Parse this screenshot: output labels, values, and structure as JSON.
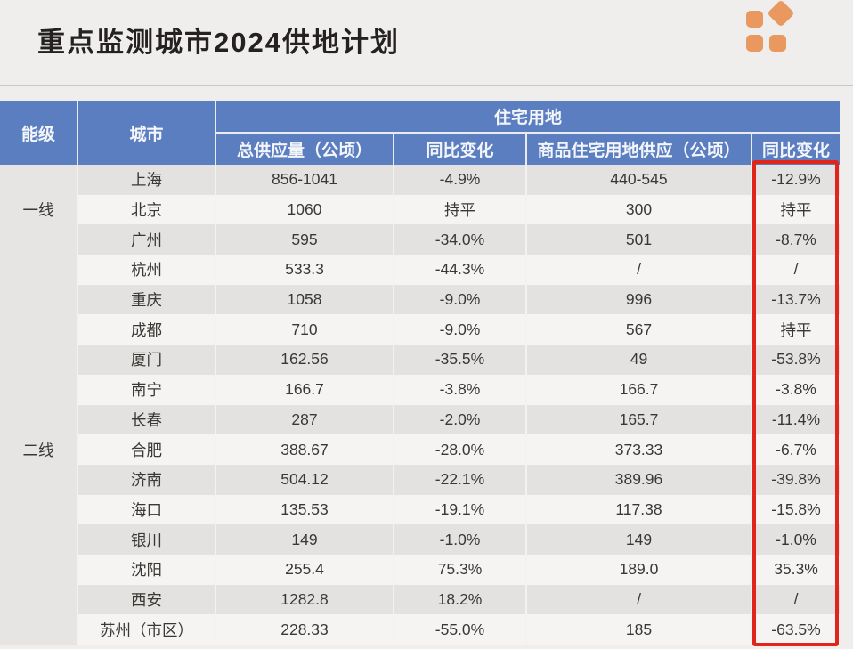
{
  "page": {
    "title": "重点监测城市2024供地计划"
  },
  "logo": {
    "color": "#e9995f"
  },
  "colors": {
    "page_bg": "#efeeec",
    "header_bg": "#5b7ec1",
    "stripe_gray": "#e3e2e0",
    "stripe_white": "#f5f4f2",
    "tier_col_bg": "#e6e5e3",
    "highlight_red": "#e0251c"
  },
  "table_header": {
    "tier": "能级",
    "city": "城市",
    "group": "住宅用地",
    "sub": [
      "总供应量（公顷）",
      "同比变化",
      "商品住宅用地供应（公顷）",
      "同比变化"
    ]
  },
  "chart_data": {
    "type": "table",
    "title": "重点监测城市2024供地计划",
    "columns": [
      "能级",
      "城市",
      "总供应量（公顷）",
      "同比变化",
      "商品住宅用地供应（公顷）",
      "同比变化"
    ],
    "rows": [
      [
        "一线",
        "上海",
        "856-1041",
        "-4.9%",
        "440-545",
        "-12.9%"
      ],
      [
        "一线",
        "北京",
        "1060",
        "持平",
        "300",
        "持平"
      ],
      [
        "一线",
        "广州",
        "595",
        "-34.0%",
        "501",
        "-8.7%"
      ],
      [
        "二线",
        "杭州",
        "533.3",
        "-44.3%",
        "/",
        "/"
      ],
      [
        "二线",
        "重庆",
        "1058",
        "-9.0%",
        "996",
        "-13.7%"
      ],
      [
        "二线",
        "成都",
        "710",
        "-9.0%",
        "567",
        "持平"
      ],
      [
        "二线",
        "厦门",
        "162.56",
        "-35.5%",
        "49",
        "-53.8%"
      ],
      [
        "二线",
        "南宁",
        "166.7",
        "-3.8%",
        "166.7",
        "-3.8%"
      ],
      [
        "二线",
        "长春",
        "287",
        "-2.0%",
        "165.7",
        "-11.4%"
      ],
      [
        "二线",
        "合肥",
        "388.67",
        "-28.0%",
        "373.33",
        "-6.7%"
      ],
      [
        "二线",
        "济南",
        "504.12",
        "-22.1%",
        "389.96",
        "-39.8%"
      ],
      [
        "二线",
        "海口",
        "135.53",
        "-19.1%",
        "117.38",
        "-15.8%"
      ],
      [
        "二线",
        "银川",
        "149",
        "-1.0%",
        "149",
        "-1.0%"
      ],
      [
        "二线",
        "沈阳",
        "255.4",
        "75.3%",
        "189.0",
        "35.3%"
      ],
      [
        "二线",
        "西安",
        "1282.8",
        "18.2%",
        "/",
        "/"
      ],
      [
        "二线",
        "苏州（市区）",
        "228.33",
        "-55.0%",
        "185",
        "-63.5%"
      ]
    ],
    "highlight_column_index": 5,
    "layout": {
      "striped_rows": true,
      "tier_column_rowspan": true
    }
  }
}
